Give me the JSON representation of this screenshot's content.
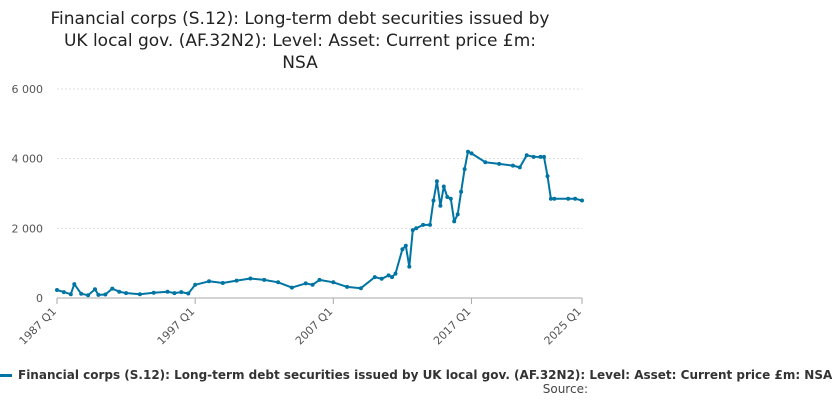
{
  "title_lines": [
    "Financial corps (S.12): Long-term debt securities issued by",
    "UK local gov. (AF.32N2): Level: Asset: Current price £m:",
    "NSA"
  ],
  "legend": {
    "label": "Financial corps (S.12): Long-term debt securities issued by UK local gov. (AF.32N2): Level: Asset: Current price £m: NSA"
  },
  "source_label": "Source:",
  "chart_data": {
    "type": "line",
    "title": "Financial corps (S.12): Long-term debt securities issued by UK local gov. (AF.32N2): Level: Asset: Current price £m: NSA",
    "xlabel": "",
    "ylabel": "",
    "ylim": [
      0,
      6000
    ],
    "y_ticks": [
      0,
      2000,
      4000,
      6000
    ],
    "y_tick_labels": [
      "0",
      "2 000",
      "4 000",
      "6 000"
    ],
    "x_ticks": [
      "1987 Q1",
      "1997 Q1",
      "2007 Q1",
      "2017 Q1",
      "2025 Q1"
    ],
    "grid": "horizontal",
    "color": "#0075a3",
    "series": [
      {
        "name": "Financial corps (S.12): Long-term debt securities issued by UK local gov. (AF.32N2): Level: Asset: Current price £m: NSA",
        "x": [
          "1987 Q1",
          "1987 Q3",
          "1988 Q1",
          "1988 Q2",
          "1988 Q4",
          "1989 Q2",
          "1989 Q4",
          "1990 Q1",
          "1990 Q3",
          "1991 Q1",
          "1991 Q3",
          "1992 Q1",
          "1993 Q1",
          "1994 Q1",
          "1995 Q1",
          "1995 Q3",
          "1996 Q1",
          "1996 Q3",
          "1997 Q1",
          "1998 Q1",
          "1999 Q1",
          "2000 Q1",
          "2001 Q1",
          "2002 Q1",
          "2003 Q1",
          "2004 Q1",
          "2005 Q1",
          "2005 Q3",
          "2006 Q1",
          "2007 Q1",
          "2008 Q1",
          "2009 Q1",
          "2010 Q1",
          "2010 Q3",
          "2011 Q1",
          "2011 Q2",
          "2011 Q3",
          "2012 Q1",
          "2012 Q2",
          "2012 Q3",
          "2012 Q4",
          "2013 Q1",
          "2013 Q3",
          "2014 Q1",
          "2014 Q2",
          "2014 Q3",
          "2014 Q4",
          "2015 Q1",
          "2015 Q2",
          "2015 Q3",
          "2015 Q4",
          "2016 Q1",
          "2016 Q2",
          "2016 Q3",
          "2016 Q4",
          "2017 Q1",
          "2018 Q1",
          "2019 Q1",
          "2020 Q1",
          "2020 Q3",
          "2021 Q1",
          "2021 Q3",
          "2022 Q1",
          "2022 Q2",
          "2022 Q3",
          "2022 Q4",
          "2023 Q1",
          "2024 Q1",
          "2024 Q3",
          "2025 Q1"
        ],
        "values": [
          230,
          170,
          110,
          400,
          120,
          80,
          250,
          90,
          100,
          270,
          180,
          140,
          110,
          150,
          180,
          140,
          170,
          130,
          380,
          480,
          430,
          500,
          560,
          520,
          450,
          300,
          420,
          380,
          520,
          450,
          320,
          280,
          600,
          550,
          650,
          600,
          700,
          1400,
          1500,
          900,
          1950,
          2000,
          2100,
          2100,
          2800,
          3350,
          2650,
          3200,
          2900,
          2850,
          2200,
          2400,
          3050,
          3700,
          4200,
          4150,
          3900,
          3850,
          3800,
          3750,
          4100,
          4050,
          4050,
          4050,
          3500,
          2850,
          2850,
          2850,
          2850,
          2800
        ]
      }
    ]
  }
}
